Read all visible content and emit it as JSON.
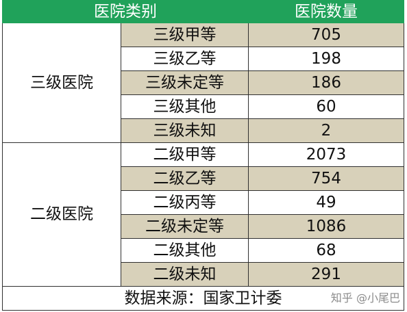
{
  "header": {
    "category_label": "医院类别",
    "count_label": "医院数量"
  },
  "groups": [
    {
      "name": "三级医院",
      "rows": [
        {
          "label": "三级甲等",
          "count": "705"
        },
        {
          "label": "三级乙等",
          "count": "198"
        },
        {
          "label": "三级未定等",
          "count": "186"
        },
        {
          "label": "三级其他",
          "count": "60"
        },
        {
          "label": "三级未知",
          "count": "2"
        }
      ]
    },
    {
      "name": "二级医院",
      "rows": [
        {
          "label": "二级甲等",
          "count": "2073"
        },
        {
          "label": "二级乙等",
          "count": "754"
        },
        {
          "label": "二级丙等",
          "count": "49"
        },
        {
          "label": "二级未定等",
          "count": "1086"
        },
        {
          "label": "二级其他",
          "count": "68"
        },
        {
          "label": "二级未知",
          "count": "291"
        }
      ]
    }
  ],
  "footer": {
    "source": "数据来源：国家卫计委"
  },
  "watermark": "知乎 @小尾巴",
  "colors": {
    "header_bg": "#20a25a",
    "shaded_row_bg": "#d8d1ba"
  }
}
